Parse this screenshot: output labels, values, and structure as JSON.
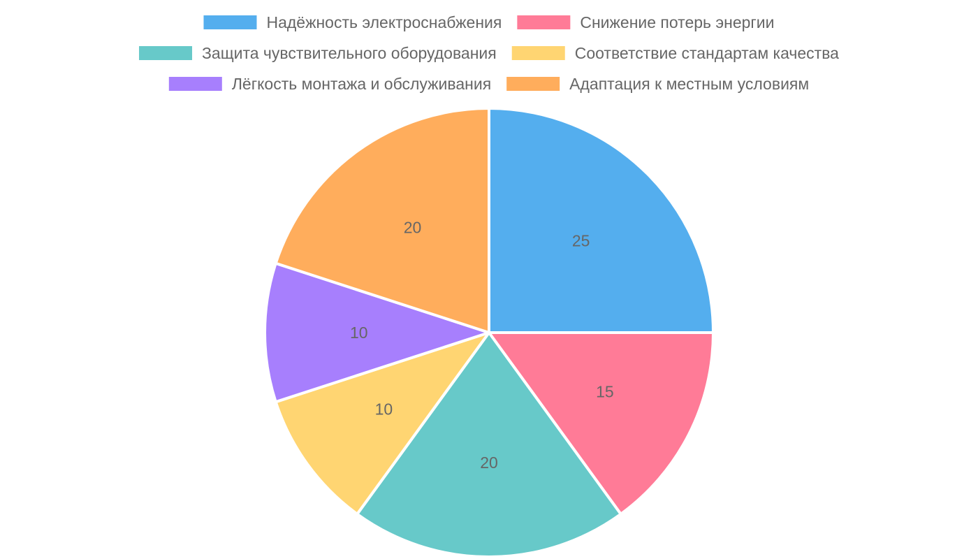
{
  "chart_data": {
    "type": "pie",
    "title": "",
    "categories": [
      "Надёжность электроснабжения",
      "Снижение потерь энергии",
      "Защита чувствительного оборудования",
      "Соответствие стандартам качества",
      "Лёгкость монтажа и обслуживания",
      "Адаптация к местным условиям"
    ],
    "values": [
      25,
      15,
      20,
      10,
      10,
      20
    ],
    "colors": [
      "#54aeee",
      "#ff7b97",
      "#67c9c9",
      "#ffd572",
      "#a77ffd",
      "#ffad5c"
    ],
    "start_angle": "top",
    "direction": "clockwise",
    "data_labels": true,
    "legend": {
      "position": "top",
      "rows": [
        [
          0,
          1
        ],
        [
          2,
          3
        ],
        [
          4,
          5
        ]
      ]
    }
  }
}
